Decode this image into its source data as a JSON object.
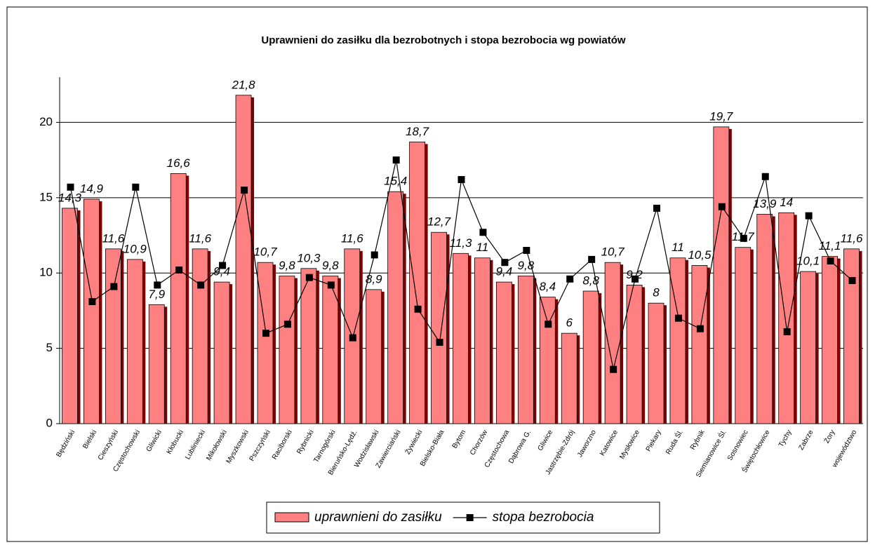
{
  "chart_data": {
    "type": "bar-line",
    "title": "Uprawnieni do zasiłku dla bezrobotnych i stopa bezrobocia wg powiatów",
    "categories": [
      "Będziński",
      "Bielski",
      "Cieszyński",
      "Częstochowski",
      "Gliwicki",
      "Kłobucki",
      "Lubliniecki",
      "Mikołowski",
      "Myszkowski",
      "Pszczyński",
      "Raciborski",
      "Rybnicki",
      "Tarnogórski",
      "Bieruńsko-Lędź.",
      "Wodzisławski",
      "Zawierciański",
      "Żywiecki",
      "Bielsko-Biała",
      "Bytom",
      "Chorzów",
      "Częstochowa",
      "Dąbrowa G.",
      "Gliwice",
      "Jastrzębie-Zdrój",
      "Jaworzno",
      "Katowice",
      "Mysłowice",
      "Piekary",
      "Ruda Śl.",
      "Rybnik",
      "Siemianowice Śl.",
      "Sosnowiec",
      "Świętochłowice",
      "Tychy",
      "Zabrze",
      "Żory",
      "województwo"
    ],
    "series": [
      {
        "name": "uprawnieni do zasiłku",
        "type": "bar",
        "color": "#ff8080",
        "values": [
          14.3,
          14.9,
          11.6,
          10.9,
          7.9,
          16.6,
          11.6,
          9.4,
          21.8,
          10.7,
          9.8,
          10.3,
          9.8,
          11.6,
          8.9,
          15.4,
          18.7,
          12.7,
          11.3,
          11,
          9.4,
          9.8,
          8.4,
          6,
          8.8,
          10.7,
          9.2,
          8,
          11,
          10.5,
          19.7,
          11.7,
          13.9,
          14,
          10.1,
          11.1,
          11.6
        ],
        "value_labels": [
          "14,3",
          "14,9",
          "11,6",
          "10,9",
          "7,9",
          "16,6",
          "11,6",
          "9,4",
          "21,8",
          "10,7",
          "9,8",
          "10,3",
          "9,8",
          "11,6",
          "8,9",
          "15,4",
          "18,7",
          "12,7",
          "11,3",
          "11",
          "9,4",
          "9,8",
          "8,4",
          "6",
          "8,8",
          "10,7",
          "9,2",
          "8",
          "11",
          "10,5",
          "19,7",
          "11,7",
          "13,9",
          "14",
          "10,1",
          "11,1",
          "11,6"
        ]
      },
      {
        "name": "stopa bezrobocia",
        "type": "line",
        "color": "#000000",
        "values": [
          15.7,
          8.1,
          9.1,
          15.7,
          9.2,
          10.2,
          9.2,
          10.5,
          15.5,
          6.0,
          6.6,
          9.7,
          9.2,
          5.7,
          11.2,
          17.5,
          7.6,
          5.4,
          16.2,
          12.7,
          10.7,
          11.5,
          6.6,
          9.6,
          10.9,
          3.6,
          9.6,
          14.3,
          7.0,
          6.3,
          14.4,
          12.3,
          16.4,
          6.1,
          13.8,
          10.8,
          9.5
        ]
      }
    ],
    "ylim": [
      0,
      23
    ],
    "yticks": [
      0,
      5,
      10,
      15,
      20
    ],
    "grid": true,
    "legend": "bottom"
  }
}
